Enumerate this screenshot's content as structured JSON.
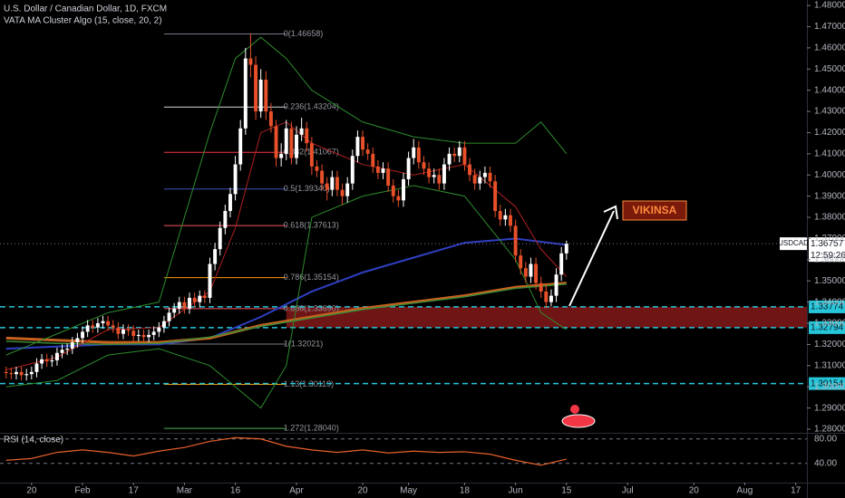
{
  "chart_data": {
    "type": "candlestick",
    "title": "U.S. Dollar / Canadian Dollar, 1D, FXCM",
    "indicator": "VATA MA Cluster Algo (15, close, 20, 2)",
    "annotation": "VIKINSA",
    "up_color": "#ffffff",
    "down_color": "#e8502a",
    "x": [
      0,
      1,
      2,
      3,
      4,
      5,
      6,
      7,
      8,
      9,
      10,
      11,
      12,
      13,
      14,
      15,
      16,
      17,
      18,
      19,
      20,
      21,
      22,
      23,
      24,
      25,
      26,
      27,
      28,
      29,
      30,
      31,
      32,
      33,
      34,
      35,
      36,
      37,
      38,
      39,
      40,
      41,
      42,
      43,
      44,
      45,
      46,
      47,
      48,
      49,
      50,
      51,
      52,
      53,
      54,
      55,
      56,
      57,
      58,
      59,
      60,
      61,
      62,
      63,
      64,
      65,
      66,
      67,
      68,
      69,
      70,
      71,
      72,
      73,
      74,
      75,
      76,
      77,
      78,
      79,
      80,
      81,
      82,
      83,
      84,
      85,
      86,
      87,
      88,
      89,
      90,
      91,
      92,
      93,
      94,
      95,
      96,
      97,
      98,
      99,
      100,
      101,
      102,
      103,
      104,
      105,
      106,
      107,
      108,
      109,
      110
    ],
    "open": [
      1.307,
      1.3065,
      1.306,
      1.307,
      1.3055,
      1.306,
      1.307,
      1.311,
      1.313,
      1.312,
      1.3125,
      1.316,
      1.3175,
      1.318,
      1.321,
      1.323,
      1.326,
      1.329,
      1.328,
      1.33,
      1.331,
      1.329,
      1.328,
      1.325,
      1.327,
      1.3265,
      1.324,
      1.3245,
      1.3235,
      1.3245,
      1.326,
      1.328,
      1.331,
      1.335,
      1.337,
      1.34,
      1.337,
      1.342,
      1.34,
      1.343,
      1.342,
      1.358,
      1.365,
      1.375,
      1.383,
      1.391,
      1.405,
      1.422,
      1.455,
      1.452,
      1.43,
      1.445,
      1.43,
      1.423,
      1.408,
      1.41,
      1.422,
      1.408,
      1.419,
      1.422,
      1.415,
      1.404,
      1.402,
      1.396,
      1.393,
      1.399,
      1.393,
      1.39,
      1.396,
      1.409,
      1.418,
      1.412,
      1.41,
      1.404,
      1.401,
      1.403,
      1.395,
      1.39,
      1.388,
      1.398,
      1.408,
      1.413,
      1.406,
      1.403,
      1.399,
      1.4,
      1.396,
      1.405,
      1.41,
      1.409,
      1.413,
      1.405,
      1.4,
      1.396,
      1.399,
      1.401,
      1.397,
      1.383,
      1.379,
      1.381,
      1.376,
      1.362,
      1.356,
      1.352,
      1.358,
      1.349,
      1.345,
      1.34,
      1.343,
      1.353,
      1.363
    ],
    "high": [
      1.3095,
      1.309,
      1.3095,
      1.3095,
      1.3085,
      1.3095,
      1.3135,
      1.3155,
      1.3155,
      1.315,
      1.3185,
      1.32,
      1.3205,
      1.3235,
      1.3255,
      1.3285,
      1.3315,
      1.3315,
      1.3325,
      1.3335,
      1.3335,
      1.3315,
      1.3305,
      1.3295,
      1.3295,
      1.329,
      1.327,
      1.327,
      1.327,
      1.3285,
      1.3305,
      1.3335,
      1.3375,
      1.3395,
      1.3425,
      1.3425,
      1.3445,
      1.3445,
      1.3455,
      1.3455,
      1.361,
      1.368,
      1.378,
      1.386,
      1.394,
      1.409,
      1.426,
      1.46,
      1.4666,
      1.456,
      1.45,
      1.449,
      1.434,
      1.426,
      1.415,
      1.426,
      1.425,
      1.423,
      1.427,
      1.425,
      1.418,
      1.407,
      1.405,
      1.399,
      1.402,
      1.402,
      1.396,
      1.399,
      1.412,
      1.421,
      1.421,
      1.415,
      1.413,
      1.407,
      1.406,
      1.406,
      1.398,
      1.393,
      1.401,
      1.411,
      1.417,
      1.416,
      1.409,
      1.406,
      1.403,
      1.403,
      1.408,
      1.413,
      1.413,
      1.416,
      1.416,
      1.408,
      1.403,
      1.402,
      1.404,
      1.404,
      1.4,
      1.386,
      1.384,
      1.384,
      1.379,
      1.365,
      1.359,
      1.361,
      1.361,
      1.352,
      1.348,
      1.346,
      1.356,
      1.366,
      1.369
    ],
    "low": [
      1.304,
      1.3035,
      1.3035,
      1.303,
      1.303,
      1.3035,
      1.3045,
      1.3085,
      1.3095,
      1.3095,
      1.31,
      1.3135,
      1.315,
      1.3155,
      1.3185,
      1.3205,
      1.3235,
      1.3255,
      1.3255,
      1.3275,
      1.3265,
      1.3255,
      1.3225,
      1.3225,
      1.324,
      1.3215,
      1.3215,
      1.321,
      1.321,
      1.322,
      1.3235,
      1.3255,
      1.3285,
      1.3325,
      1.3345,
      1.3345,
      1.3345,
      1.3375,
      1.3375,
      1.3395,
      1.3395,
      1.355,
      1.362,
      1.372,
      1.38,
      1.388,
      1.402,
      1.419,
      1.446,
      1.426,
      1.427,
      1.426,
      1.42,
      1.404,
      1.404,
      1.407,
      1.405,
      1.405,
      1.416,
      1.411,
      1.4,
      1.399,
      1.393,
      1.388,
      1.39,
      1.39,
      1.386,
      1.387,
      1.393,
      1.406,
      1.409,
      1.407,
      1.401,
      1.398,
      1.398,
      1.392,
      1.387,
      1.385,
      1.385,
      1.395,
      1.405,
      1.403,
      1.4,
      1.396,
      1.396,
      1.393,
      1.393,
      1.402,
      1.406,
      1.406,
      1.402,
      1.397,
      1.393,
      1.393,
      1.396,
      1.394,
      1.38,
      1.376,
      1.376,
      1.373,
      1.359,
      1.353,
      1.349,
      1.349,
      1.346,
      1.342,
      1.337,
      1.338,
      1.34,
      1.35,
      1.36
    ],
    "close": [
      1.3065,
      1.306,
      1.307,
      1.3055,
      1.306,
      1.307,
      1.311,
      1.313,
      1.312,
      1.3125,
      1.316,
      1.3175,
      1.318,
      1.321,
      1.323,
      1.326,
      1.329,
      1.328,
      1.33,
      1.331,
      1.329,
      1.328,
      1.325,
      1.327,
      1.3265,
      1.324,
      1.3245,
      1.3235,
      1.3245,
      1.326,
      1.328,
      1.331,
      1.335,
      1.337,
      1.34,
      1.337,
      1.342,
      1.34,
      1.343,
      1.342,
      1.358,
      1.365,
      1.375,
      1.383,
      1.391,
      1.405,
      1.422,
      1.455,
      1.452,
      1.43,
      1.445,
      1.43,
      1.423,
      1.408,
      1.41,
      1.422,
      1.408,
      1.419,
      1.422,
      1.415,
      1.404,
      1.402,
      1.396,
      1.393,
      1.399,
      1.393,
      1.39,
      1.396,
      1.409,
      1.418,
      1.412,
      1.41,
      1.404,
      1.401,
      1.403,
      1.395,
      1.39,
      1.388,
      1.398,
      1.408,
      1.413,
      1.406,
      1.403,
      1.399,
      1.4,
      1.396,
      1.405,
      1.41,
      1.409,
      1.413,
      1.405,
      1.4,
      1.396,
      1.399,
      1.401,
      1.397,
      1.383,
      1.379,
      1.381,
      1.376,
      1.362,
      1.356,
      1.352,
      1.358,
      1.349,
      1.345,
      1.34,
      1.343,
      1.353,
      1.363,
      1.3676
    ],
    "xlim": [
      -1.2,
      157.2
    ],
    "xticks": [
      {
        "value": 5,
        "label": "20"
      },
      {
        "value": 15,
        "label": "Feb"
      },
      {
        "value": 25,
        "label": "17"
      },
      {
        "value": 35,
        "label": "Mar"
      },
      {
        "value": 45,
        "label": "16"
      },
      {
        "value": 57,
        "label": "Apr"
      },
      {
        "value": 70,
        "label": "20"
      },
      {
        "value": 79,
        "label": "May"
      },
      {
        "value": 90,
        "label": "18"
      },
      {
        "value": 100,
        "label": "Jun"
      },
      {
        "value": 110,
        "label": "15"
      },
      {
        "value": 122,
        "label": "Jul"
      },
      {
        "value": 135,
        "label": "20"
      },
      {
        "value": 145,
        "label": "Aug"
      },
      {
        "value": 155,
        "label": "17"
      }
    ],
    "ylim": [
      1.2783,
      1.4826
    ],
    "yticks": [
      {
        "value": 1.28,
        "label": "1.28000"
      },
      {
        "value": 1.29,
        "label": "1.29000"
      },
      {
        "value": 1.3,
        "label": "1.30000"
      },
      {
        "value": 1.31,
        "label": "1.31000"
      },
      {
        "value": 1.32,
        "label": "1.32000"
      },
      {
        "value": 1.33,
        "label": "1.33000"
      },
      {
        "value": 1.34,
        "label": "1.34000"
      },
      {
        "value": 1.35,
        "label": "1.35000"
      },
      {
        "value": 1.36,
        "label": "1.36000"
      },
      {
        "value": 1.37,
        "label": "1.37000"
      },
      {
        "value": 1.38,
        "label": "1.38000"
      },
      {
        "value": 1.39,
        "label": "1.39000"
      },
      {
        "value": 1.4,
        "label": "1.40000"
      },
      {
        "value": 1.41,
        "label": "1.41000"
      },
      {
        "value": 1.42,
        "label": "1.42000"
      },
      {
        "value": 1.43,
        "label": "1.43000"
      },
      {
        "value": 1.44,
        "label": "1.44000"
      },
      {
        "value": 1.45,
        "label": "1.45000"
      },
      {
        "value": 1.46,
        "label": "1.46000"
      },
      {
        "value": 1.47,
        "label": "1.47000"
      },
      {
        "value": 1.48,
        "label": "1.48000"
      }
    ],
    "lines": [
      {
        "color": "#2f3fc0",
        "width": 2,
        "x": [
          0,
          10,
          20,
          30,
          40,
          50,
          60,
          70,
          80,
          90,
          100,
          110
        ],
        "values": [
          1.318,
          1.319,
          1.32,
          1.32,
          1.323,
          1.333,
          1.345,
          1.354,
          1.361,
          1.368,
          1.37,
          1.367
        ]
      },
      {
        "color": "#c8621e",
        "width": 3,
        "x": [
          0,
          10,
          20,
          30,
          40,
          50,
          60,
          70,
          80,
          90,
          100,
          110
        ],
        "values": [
          1.323,
          1.322,
          1.321,
          1.321,
          1.323,
          1.329,
          1.333,
          1.337,
          1.34,
          1.343,
          1.347,
          1.349
        ]
      },
      {
        "color": "#3a8a3a",
        "width": 1.5,
        "x": [
          0,
          10,
          20,
          30,
          40,
          50,
          60,
          70,
          80,
          90,
          100,
          110
        ],
        "values": [
          1.3215,
          1.3205,
          1.32,
          1.3205,
          1.3235,
          1.3285,
          1.3325,
          1.3365,
          1.3395,
          1.3425,
          1.3465,
          1.3485
        ]
      },
      {
        "color": "#2e8b2e",
        "width": 1,
        "x": [
          0,
          10,
          20,
          30,
          40,
          45,
          50,
          55,
          60,
          70,
          80,
          90,
          100,
          105,
          110
        ],
        "values": [
          1.315,
          1.325,
          1.335,
          1.34,
          1.42,
          1.455,
          1.465,
          1.455,
          1.44,
          1.425,
          1.418,
          1.415,
          1.415,
          1.425,
          1.41
        ]
      },
      {
        "color": "#2e8b2e",
        "width": 1,
        "x": [
          0,
          10,
          20,
          30,
          40,
          45,
          50,
          55,
          60,
          70,
          80,
          90,
          100,
          105,
          110
        ],
        "values": [
          1.3,
          1.303,
          1.315,
          1.318,
          1.31,
          1.3,
          1.29,
          1.31,
          1.38,
          1.39,
          1.395,
          1.39,
          1.36,
          1.335,
          1.327
        ]
      },
      {
        "color": "#b02020",
        "width": 1,
        "x": [
          0,
          10,
          20,
          30,
          40,
          45,
          50,
          55,
          60,
          70,
          80,
          90,
          100,
          105,
          110
        ],
        "values": [
          1.308,
          1.314,
          1.327,
          1.328,
          1.345,
          1.375,
          1.42,
          1.425,
          1.415,
          1.405,
          1.4,
          1.405,
          1.385,
          1.365,
          1.352
        ]
      }
    ],
    "fib_levels": [
      {
        "value": 1.46658,
        "label": "0(1.46658)",
        "color": "#787b86"
      },
      {
        "value": 1.43204,
        "label": "0.236(1.43204)",
        "color": "#d1d4dc"
      },
      {
        "value": 1.41067,
        "label": "0.382(1.41067)",
        "color": "#f23645"
      },
      {
        "value": 1.3934,
        "label": "0.5(1.39340)",
        "color": "#3f51b5"
      },
      {
        "value": 1.37613,
        "label": "0.618(1.37613)",
        "color": "#f7525f"
      },
      {
        "value": 1.35154,
        "label": "0.786(1.35154)",
        "color": "#ff9800"
      },
      {
        "value": 1.3369,
        "label": "0.886(1.33690)",
        "color": "#f7525f"
      },
      {
        "value": 1.32021,
        "label": "1(1.32021)",
        "color": "#787b86"
      },
      {
        "value": 1.30119,
        "label": "1.13(1.30119)",
        "color": "#ff9800"
      },
      {
        "value": 1.2804,
        "label": "1.272(1.28040)",
        "color": "#4caf50"
      }
    ],
    "levels": [
      1.33774,
      1.32794,
      1.30154
    ],
    "level_color": "#26c6da",
    "zone_color": "#8b1a1a",
    "last_price": {
      "symbol": "USDCAD",
      "value": 1.36757,
      "countdown": "12:59:26"
    },
    "rsi": {
      "title": "RSI (14, close)",
      "color": "#e8602a",
      "x": [
        0,
        5,
        10,
        15,
        20,
        25,
        30,
        35,
        40,
        45,
        50,
        55,
        60,
        65,
        70,
        75,
        80,
        85,
        90,
        95,
        100,
        105,
        110
      ],
      "values": [
        45,
        48,
        58,
        62,
        58,
        52,
        60,
        66,
        76,
        82,
        80,
        68,
        62,
        58,
        62,
        57,
        60,
        58,
        59,
        55,
        45,
        37,
        47
      ],
      "ylim": [
        10,
        90
      ],
      "yticks": [
        {
          "value": 80,
          "label": "80.00"
        },
        {
          "value": 40,
          "label": "40.00"
        }
      ]
    }
  }
}
